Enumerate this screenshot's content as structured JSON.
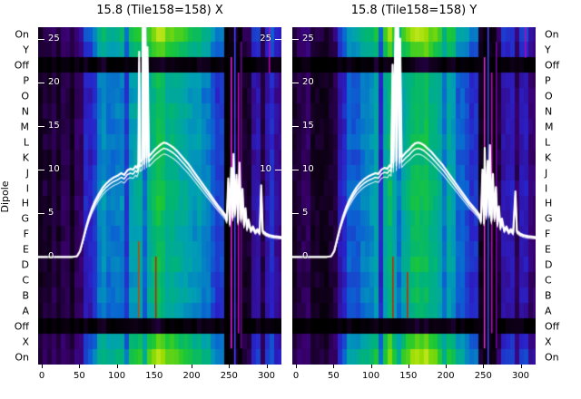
{
  "titles": {
    "left": "15.8 (Tile158=158) X",
    "right": "15.8 (Tile158=158) Y"
  },
  "ylabel": "Dipole",
  "row_labels": [
    "On",
    "Y",
    "Off",
    "P",
    "O",
    "N",
    "M",
    "L",
    "K",
    "J",
    "I",
    "H",
    "G",
    "F",
    "E",
    "D",
    "C",
    "B",
    "A",
    "Off",
    "X",
    "On"
  ],
  "x_tick_labels": [
    "0",
    "50",
    "100",
    "150",
    "200",
    "250",
    "300"
  ],
  "chart_data": [
    {
      "type": "heatmap",
      "title": "15.8 (Tile158=158) X",
      "x_range": [
        -5,
        320
      ],
      "x_ticks": [
        0,
        50,
        100,
        150,
        200,
        250,
        300
      ],
      "row_labels": [
        "On",
        "Y",
        "Off",
        "P",
        "O",
        "N",
        "M",
        "L",
        "K",
        "J",
        "I",
        "H",
        "G",
        "F",
        "E",
        "D",
        "C",
        "B",
        "A",
        "Off",
        "X",
        "On"
      ],
      "row_gains": [
        1.35,
        1.2,
        0.1,
        1.0,
        0.97,
        1.02,
        0.99,
        1.03,
        0.98,
        1.0,
        1.04,
        1.06,
        1.02,
        0.97,
        1.0,
        1.02,
        0.96,
        0.99,
        0.94,
        0.1,
        1.2,
        1.35
      ],
      "line_axis": {
        "min": -12.3,
        "max": 26.3,
        "ticks_left": [
          25,
          20,
          15,
          10,
          5,
          0
        ],
        "ticks_right": [
          25,
          10
        ]
      },
      "seed": 158,
      "base_peak": 13,
      "base_points": [
        [
          -5,
          0
        ],
        [
          46,
          0
        ],
        [
          52,
          1
        ],
        [
          58,
          3
        ],
        [
          64,
          4.8
        ],
        [
          70,
          6.2
        ],
        [
          78,
          7.5
        ],
        [
          86,
          8.4
        ],
        [
          95,
          9
        ],
        [
          105,
          9.5
        ],
        [
          115,
          10
        ],
        [
          125,
          10.3
        ],
        [
          135,
          11
        ],
        [
          145,
          11.7
        ],
        [
          160,
          13
        ],
        [
          175,
          12.5
        ],
        [
          190,
          11.2
        ],
        [
          205,
          9.7
        ],
        [
          220,
          7.7
        ],
        [
          235,
          5.9
        ],
        [
          245,
          4.9
        ],
        [
          252,
          4.3
        ],
        [
          260,
          4.6
        ],
        [
          268,
          4.0
        ],
        [
          275,
          3.4
        ],
        [
          285,
          3.0
        ],
        [
          300,
          2.6
        ],
        [
          320,
          2.2
        ]
      ],
      "colormap": [
        {
          "t": 0.0,
          "c": "#000000"
        },
        {
          "t": 0.07,
          "c": "#10001a"
        },
        {
          "t": 0.16,
          "c": "#3a0070"
        },
        {
          "t": 0.27,
          "c": "#2a20c8"
        },
        {
          "t": 0.38,
          "c": "#0a64d2"
        },
        {
          "t": 0.48,
          "c": "#00a0b4"
        },
        {
          "t": 0.58,
          "c": "#00b478"
        },
        {
          "t": 0.68,
          "c": "#1ec832"
        },
        {
          "t": 0.8,
          "c": "#96dc00"
        },
        {
          "t": 0.92,
          "c": "#e6f03c"
        },
        {
          "t": 1.0,
          "c": "#ffffb4"
        }
      ],
      "features": [
        {
          "x0": 113,
          "x1": 119,
          "m": 0.62
        },
        {
          "x0": 126,
          "x1": 131,
          "m": 1.22
        },
        {
          "x0": 135,
          "x1": 140,
          "m": 0.8
        },
        {
          "x0": 152,
          "x1": 155,
          "m": 1.15
        },
        {
          "x0": 199,
          "x1": 203,
          "m": 0.85
        },
        {
          "x0": 246,
          "x1": 269,
          "m": 0.13
        },
        {
          "x0": 269,
          "x1": 277,
          "m": 0.5
        },
        {
          "x0": 293,
          "x1": 298,
          "m": 0.45
        },
        {
          "x0": 303,
          "x1": 311,
          "m": 1.35
        }
      ],
      "marks": [
        {
          "x": 129,
          "r0": 14,
          "r1": 18,
          "c": "#cc4400"
        },
        {
          "x": 151,
          "r0": 15,
          "r1": 18,
          "c": "#bb2200"
        },
        {
          "x": 252,
          "r0": 2,
          "r1": 20,
          "c": "#ee22ee"
        },
        {
          "x": 257,
          "r0": 0,
          "r1": 21,
          "c": "#4444ff"
        },
        {
          "x": 262,
          "r0": 3,
          "r1": 19,
          "c": "#cc00cc"
        },
        {
          "x": 266,
          "r0": 1,
          "r1": 20,
          "c": "#7700aa"
        },
        {
          "x": 303,
          "r0": 0,
          "r1": 2,
          "c": "#bb00bb"
        }
      ],
      "line_points": [
        [
          -5,
          0
        ],
        [
          40,
          0
        ],
        [
          47,
          0.1
        ],
        [
          51,
          0.7
        ],
        [
          55,
          2
        ],
        [
          59,
          3.4
        ],
        [
          63,
          4.6
        ],
        [
          67,
          5.6
        ],
        [
          71,
          6.4
        ],
        [
          76,
          7.2
        ],
        [
          81,
          7.9
        ],
        [
          86,
          8.4
        ],
        [
          91,
          8.8
        ],
        [
          96,
          9.1
        ],
        [
          101,
          9.3
        ],
        [
          106,
          9.6
        ],
        [
          110,
          9.4
        ],
        [
          114,
          9.9
        ],
        [
          118,
          10.1
        ],
        [
          122,
          10.0
        ],
        [
          125,
          10.4
        ],
        [
          127,
          10.2
        ],
        [
          129,
          10.7
        ],
        [
          130,
          23.5
        ],
        [
          131,
          10.9
        ],
        [
          134,
          11.1
        ],
        [
          135,
          28
        ],
        [
          137,
          11.2
        ],
        [
          138,
          30
        ],
        [
          140,
          11.4
        ],
        [
          141,
          24
        ],
        [
          143,
          11.5
        ],
        [
          147,
          11.9
        ],
        [
          151,
          12.3
        ],
        [
          155,
          12.6
        ],
        [
          159,
          12.9
        ],
        [
          163,
          13.1
        ],
        [
          167,
          13.0
        ],
        [
          171,
          12.8
        ],
        [
          176,
          12.5
        ],
        [
          181,
          12.1
        ],
        [
          186,
          11.6
        ],
        [
          191,
          11.1
        ],
        [
          196,
          10.6
        ],
        [
          201,
          10.0
        ],
        [
          206,
          9.4
        ],
        [
          211,
          8.8
        ],
        [
          216,
          8.2
        ],
        [
          221,
          7.6
        ],
        [
          226,
          7.0
        ],
        [
          231,
          6.4
        ],
        [
          236,
          5.8
        ],
        [
          241,
          5.3
        ],
        [
          245,
          4.8
        ],
        [
          247,
          4.3
        ],
        [
          249,
          9.0
        ],
        [
          251,
          3.9
        ],
        [
          253,
          10.2
        ],
        [
          255,
          4.6
        ],
        [
          256,
          11.8
        ],
        [
          258,
          5.1
        ],
        [
          260,
          9.4
        ],
        [
          262,
          4.1
        ],
        [
          264,
          10.8
        ],
        [
          266,
          4.4
        ],
        [
          268,
          7.8
        ],
        [
          270,
          3.7
        ],
        [
          272,
          5.6
        ],
        [
          274,
          3.3
        ],
        [
          276,
          4.3
        ],
        [
          279,
          3.1
        ],
        [
          282,
          3.5
        ],
        [
          285,
          2.9
        ],
        [
          288,
          3.2
        ],
        [
          291,
          2.8
        ],
        [
          293,
          8.2
        ],
        [
          295,
          3.0
        ],
        [
          299,
          2.7
        ],
        [
          304,
          2.5
        ],
        [
          310,
          2.4
        ],
        [
          320,
          2.3
        ]
      ]
    },
    {
      "type": "heatmap",
      "title": "15.8 (Tile158=158) Y",
      "x_range": [
        -5,
        320
      ],
      "x_ticks": [
        0,
        50,
        100,
        150,
        200,
        250,
        300
      ],
      "row_labels": [
        "On",
        "Y",
        "Off",
        "P",
        "O",
        "N",
        "M",
        "L",
        "K",
        "J",
        "I",
        "H",
        "G",
        "F",
        "E",
        "D",
        "C",
        "B",
        "A",
        "Off",
        "X",
        "On"
      ],
      "row_gains": [
        1.35,
        1.2,
        0.1,
        1.0,
        0.98,
        1.01,
        1.0,
        1.03,
        0.97,
        1.0,
        1.05,
        1.05,
        1.01,
        0.98,
        1.0,
        1.03,
        0.95,
        0.99,
        0.95,
        0.1,
        1.2,
        1.35
      ],
      "line_axis": {
        "min": -12.3,
        "max": 26.3,
        "ticks_left": [
          25,
          20,
          15,
          10,
          5,
          0
        ],
        "ticks_right": []
      },
      "seed": 159,
      "base_peak": 13,
      "base_points": [
        [
          -5,
          0
        ],
        [
          46,
          0
        ],
        [
          52,
          1
        ],
        [
          58,
          3
        ],
        [
          64,
          4.8
        ],
        [
          70,
          6.2
        ],
        [
          78,
          7.5
        ],
        [
          86,
          8.4
        ],
        [
          95,
          9
        ],
        [
          105,
          9.5
        ],
        [
          115,
          10
        ],
        [
          125,
          10.3
        ],
        [
          135,
          11
        ],
        [
          145,
          11.7
        ],
        [
          160,
          13
        ],
        [
          175,
          12.5
        ],
        [
          190,
          11.2
        ],
        [
          205,
          9.7
        ],
        [
          220,
          7.7
        ],
        [
          235,
          5.9
        ],
        [
          245,
          4.9
        ],
        [
          252,
          4.3
        ],
        [
          260,
          4.6
        ],
        [
          268,
          4.0
        ],
        [
          275,
          3.4
        ],
        [
          285,
          3.0
        ],
        [
          300,
          2.6
        ],
        [
          320,
          2.2
        ]
      ],
      "colormap": [
        {
          "t": 0.0,
          "c": "#000000"
        },
        {
          "t": 0.07,
          "c": "#10001a"
        },
        {
          "t": 0.16,
          "c": "#3a0070"
        },
        {
          "t": 0.27,
          "c": "#2a20c8"
        },
        {
          "t": 0.38,
          "c": "#0a64d2"
        },
        {
          "t": 0.48,
          "c": "#00a0b4"
        },
        {
          "t": 0.58,
          "c": "#00b478"
        },
        {
          "t": 0.68,
          "c": "#1ec832"
        },
        {
          "t": 0.8,
          "c": "#96dc00"
        },
        {
          "t": 0.92,
          "c": "#e6f03c"
        },
        {
          "t": 1.0,
          "c": "#ffffb4"
        }
      ],
      "features": [
        {
          "x0": 112,
          "x1": 118,
          "m": 0.65
        },
        {
          "x0": 125,
          "x1": 130,
          "m": 1.2
        },
        {
          "x0": 134,
          "x1": 139,
          "m": 0.8
        },
        {
          "x0": 150,
          "x1": 154,
          "m": 1.12
        },
        {
          "x0": 198,
          "x1": 202,
          "m": 0.87
        },
        {
          "x0": 245,
          "x1": 268,
          "m": 0.13
        },
        {
          "x0": 268,
          "x1": 276,
          "m": 0.5
        },
        {
          "x0": 292,
          "x1": 297,
          "m": 0.5
        },
        {
          "x0": 302,
          "x1": 312,
          "m": 1.3
        }
      ],
      "marks": [
        {
          "x": 128,
          "r0": 15,
          "r1": 18,
          "c": "#cc2200"
        },
        {
          "x": 148,
          "r0": 16,
          "r1": 18,
          "c": "#cc2200"
        },
        {
          "x": 251,
          "r0": 2,
          "r1": 20,
          "c": "#ee22ee"
        },
        {
          "x": 256,
          "r0": 0,
          "r1": 21,
          "c": "#4444ff"
        },
        {
          "x": 261,
          "r0": 3,
          "r1": 19,
          "c": "#cc00cc"
        },
        {
          "x": 267,
          "r0": 1,
          "r1": 20,
          "c": "#7700aa"
        },
        {
          "x": 306,
          "r0": 0,
          "r1": 1,
          "c": "#bb00bb"
        }
      ],
      "line_points": [
        [
          -5,
          0
        ],
        [
          40,
          0
        ],
        [
          47,
          0.1
        ],
        [
          51,
          0.7
        ],
        [
          55,
          2.1
        ],
        [
          59,
          3.5
        ],
        [
          63,
          4.7
        ],
        [
          67,
          5.7
        ],
        [
          71,
          6.5
        ],
        [
          76,
          7.3
        ],
        [
          81,
          8.0
        ],
        [
          86,
          8.5
        ],
        [
          91,
          8.9
        ],
        [
          96,
          9.2
        ],
        [
          101,
          9.4
        ],
        [
          106,
          9.6
        ],
        [
          110,
          9.5
        ],
        [
          114,
          10.0
        ],
        [
          118,
          10.2
        ],
        [
          122,
          10.1
        ],
        [
          125,
          10.5
        ],
        [
          127,
          10.3
        ],
        [
          129,
          22.0
        ],
        [
          130,
          10.8
        ],
        [
          133,
          27.0
        ],
        [
          134,
          11.0
        ],
        [
          136,
          30.0
        ],
        [
          138,
          11.3
        ],
        [
          139,
          25.0
        ],
        [
          141,
          11.4
        ],
        [
          143,
          11.6
        ],
        [
          147,
          12.0
        ],
        [
          151,
          12.3
        ],
        [
          155,
          12.7
        ],
        [
          159,
          13.0
        ],
        [
          163,
          13.1
        ],
        [
          167,
          13.0
        ],
        [
          171,
          12.8
        ],
        [
          176,
          12.4
        ],
        [
          181,
          12.0
        ],
        [
          186,
          11.5
        ],
        [
          191,
          11.0
        ],
        [
          196,
          10.5
        ],
        [
          201,
          9.9
        ],
        [
          206,
          9.3
        ],
        [
          211,
          8.7
        ],
        [
          216,
          8.1
        ],
        [
          221,
          7.5
        ],
        [
          226,
          6.9
        ],
        [
          231,
          6.3
        ],
        [
          236,
          5.8
        ],
        [
          241,
          5.3
        ],
        [
          245,
          4.8
        ],
        [
          247,
          4.2
        ],
        [
          249,
          10.0
        ],
        [
          251,
          4.0
        ],
        [
          252,
          12.5
        ],
        [
          254,
          4.8
        ],
        [
          256,
          11.0
        ],
        [
          258,
          5.0
        ],
        [
          259,
          12.8
        ],
        [
          261,
          4.2
        ],
        [
          263,
          9.5
        ],
        [
          265,
          4.5
        ],
        [
          267,
          8.0
        ],
        [
          269,
          3.8
        ],
        [
          271,
          5.8
        ],
        [
          273,
          3.4
        ],
        [
          275,
          4.4
        ],
        [
          278,
          3.1
        ],
        [
          281,
          3.5
        ],
        [
          284,
          2.9
        ],
        [
          287,
          3.2
        ],
        [
          290,
          2.8
        ],
        [
          293,
          7.5
        ],
        [
          295,
          3.0
        ],
        [
          299,
          2.7
        ],
        [
          304,
          2.5
        ],
        [
          310,
          2.4
        ],
        [
          320,
          2.3
        ]
      ]
    }
  ]
}
